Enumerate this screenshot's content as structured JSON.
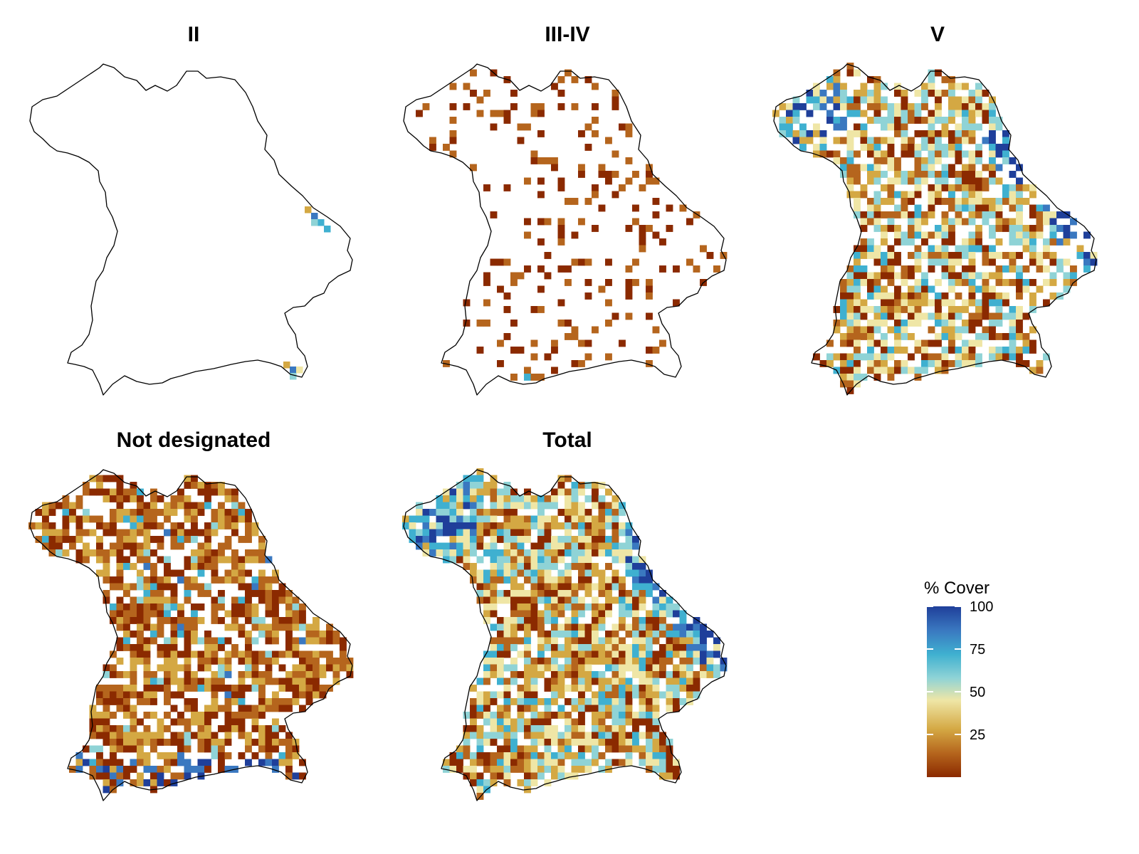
{
  "panels": [
    {
      "id": "ii",
      "title": "II",
      "density": 0.0,
      "level": "none"
    },
    {
      "id": "iii-iv",
      "title": "III-IV",
      "density": 0.17,
      "level": "low"
    },
    {
      "id": "v",
      "title": "V",
      "density": 0.72,
      "level": "high"
    },
    {
      "id": "not-designated",
      "title": "Not designated",
      "density": 0.7,
      "level": "low-mid"
    },
    {
      "id": "total",
      "title": "Total",
      "density": 0.85,
      "level": "mid-high"
    }
  ],
  "legend": {
    "title": "% Cover",
    "ticks": [
      "100",
      "75",
      "50",
      "25"
    ],
    "tick_values": [
      100,
      75,
      50,
      25
    ],
    "range": [
      0,
      100
    ],
    "colors": [
      "#8b2a00",
      "#b5651d",
      "#d4a843",
      "#efe6a6",
      "#8fd3d6",
      "#3fb0d0",
      "#3a78c0",
      "#1f3f9a"
    ]
  },
  "outline_color": "#000000"
}
